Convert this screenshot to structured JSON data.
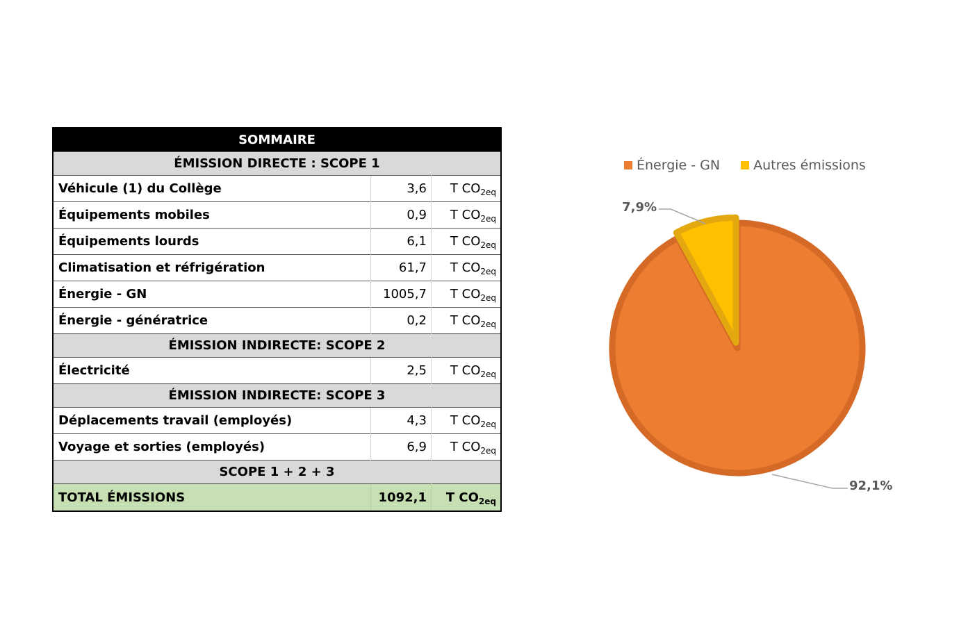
{
  "table": {
    "title": "SOMMAIRE",
    "unit_text": "T CO",
    "unit_sub": "2eq",
    "rows": [
      {
        "type": "section",
        "label": "ÉMISSION DIRECTE : SCOPE 1"
      },
      {
        "type": "item",
        "label": "Véhicule (1) du Collège",
        "value": "3,6"
      },
      {
        "type": "item",
        "label": "Équipements mobiles",
        "value": "0,9"
      },
      {
        "type": "item",
        "label": "Équipements lourds",
        "value": "6,1"
      },
      {
        "type": "item",
        "label": "Climatisation et réfrigération",
        "value": "61,7"
      },
      {
        "type": "item",
        "label": "Énergie - GN",
        "value": "1005,7"
      },
      {
        "type": "item",
        "label": "Énergie - génératrice",
        "value": "0,2"
      },
      {
        "type": "section",
        "label": "ÉMISSION INDIRECTE: SCOPE 2"
      },
      {
        "type": "item",
        "label": "Électricité",
        "value": "2,5"
      },
      {
        "type": "section",
        "label": "ÉMISSION INDIRECTE: SCOPE 3"
      },
      {
        "type": "item",
        "label": "Déplacements travail (employés)",
        "value": "4,3"
      },
      {
        "type": "item",
        "label": "Voyage et sorties (employés)",
        "value": "6,9"
      },
      {
        "type": "section",
        "label": "SCOPE 1 + 2 + 3"
      },
      {
        "type": "total",
        "label": "TOTAL ÉMISSIONS",
        "value": "1092,1"
      }
    ]
  },
  "chart_data": {
    "type": "pie",
    "legend_position": "top",
    "series": [
      {
        "name": "Énergie - GN",
        "value": 92.1,
        "label": "92,1%",
        "color": "#ed7d31",
        "border": "#d46a26"
      },
      {
        "name": "Autres émissions",
        "value": 7.9,
        "label": "7,9%",
        "color": "#ffc000",
        "border": "#e3a70f"
      }
    ]
  }
}
